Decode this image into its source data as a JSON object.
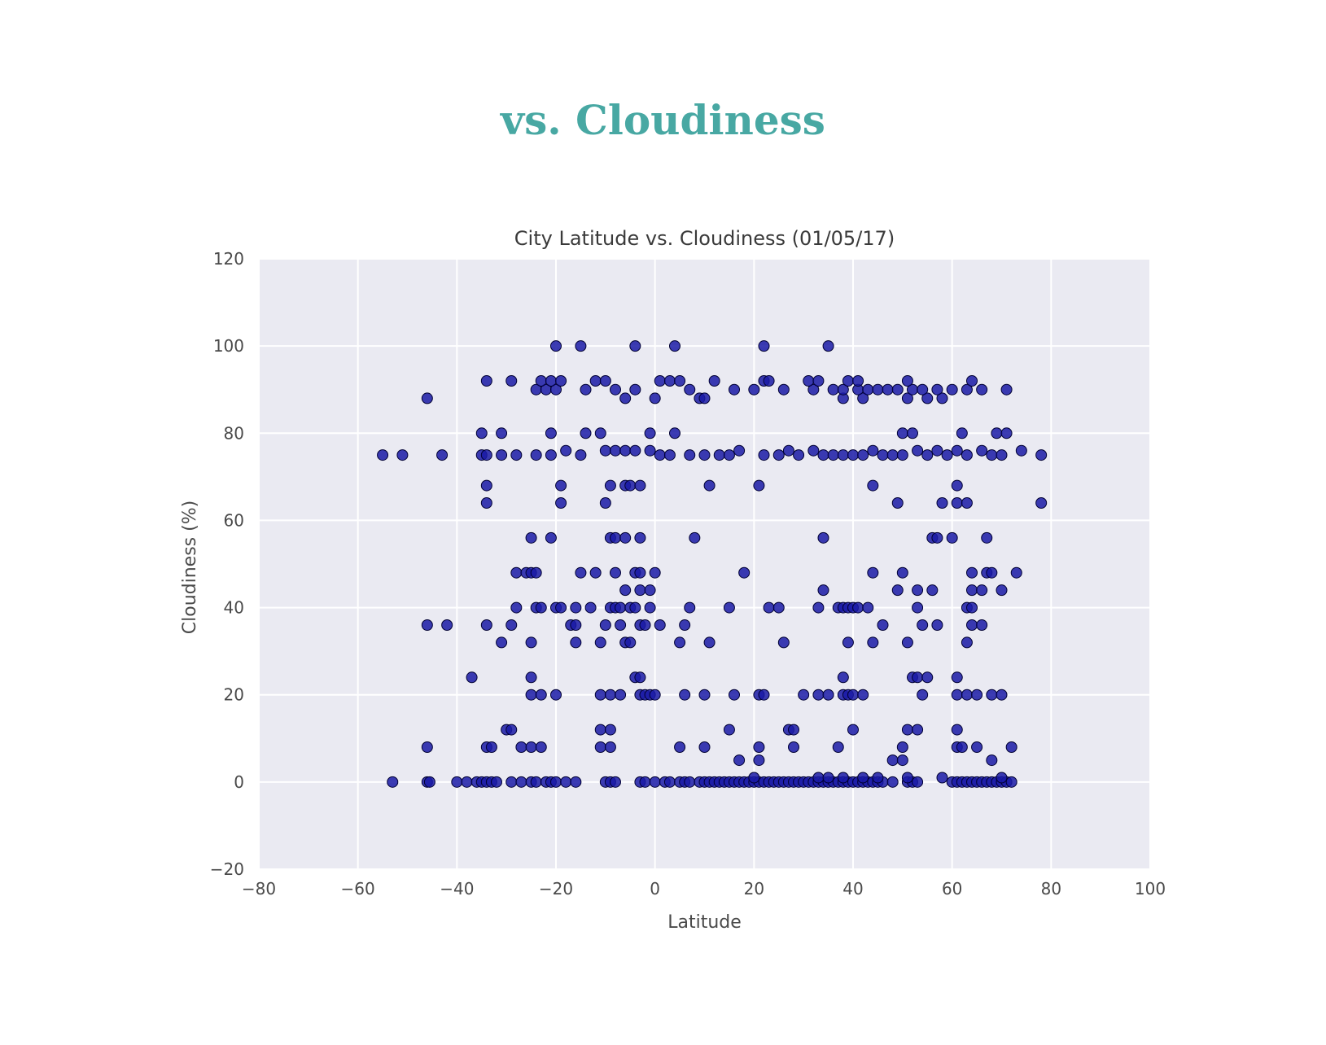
{
  "page": {
    "heading": "vs. Cloudiness"
  },
  "colors": {
    "heading": "#48a8a3",
    "plot_background": "#eaeaf2",
    "grid": "#ffffff",
    "point_fill": "#1a1aa6",
    "point_edge": "#000033"
  },
  "chart_data": {
    "type": "scatter",
    "title": "City Latitude vs. Cloudiness (01/05/17)",
    "xlabel": "Latitude",
    "ylabel": "Cloudiness (%)",
    "xlim": [
      -80,
      100
    ],
    "ylim": [
      -20,
      120
    ],
    "xticks": [
      "−80",
      "−60",
      "−40",
      "−20",
      "0",
      "20",
      "40",
      "60",
      "80",
      "100"
    ],
    "yticks": [
      "−20",
      "0",
      "20",
      "40",
      "60",
      "80",
      "100",
      "120"
    ],
    "grid": true,
    "points": [
      [
        -53,
        0
      ],
      [
        -46,
        0
      ],
      [
        -45.5,
        0
      ],
      [
        -40,
        0
      ],
      [
        -38,
        0
      ],
      [
        -36,
        0
      ],
      [
        -35,
        0
      ],
      [
        -34,
        0
      ],
      [
        -33,
        0
      ],
      [
        -32,
        0
      ],
      [
        -29,
        0
      ],
      [
        -27,
        0
      ],
      [
        -25,
        0
      ],
      [
        -24,
        0
      ],
      [
        -22,
        0
      ],
      [
        -21,
        0
      ],
      [
        -20,
        0
      ],
      [
        -18,
        0
      ],
      [
        -16,
        0
      ],
      [
        -10,
        0
      ],
      [
        -9,
        0
      ],
      [
        -8,
        0
      ],
      [
        -3,
        0
      ],
      [
        -2,
        0
      ],
      [
        0,
        0
      ],
      [
        2,
        0
      ],
      [
        3,
        0
      ],
      [
        5,
        0
      ],
      [
        6,
        0
      ],
      [
        7,
        0
      ],
      [
        9,
        0
      ],
      [
        10,
        0
      ],
      [
        11,
        0
      ],
      [
        12,
        0
      ],
      [
        13,
        0
      ],
      [
        14,
        0
      ],
      [
        15,
        0
      ],
      [
        16,
        0
      ],
      [
        17,
        0
      ],
      [
        18,
        0
      ],
      [
        19,
        0
      ],
      [
        20,
        0
      ],
      [
        21,
        0
      ],
      [
        22,
        0
      ],
      [
        23,
        0
      ],
      [
        24,
        0
      ],
      [
        25,
        0
      ],
      [
        26,
        0
      ],
      [
        27,
        0
      ],
      [
        28,
        0
      ],
      [
        29,
        0
      ],
      [
        30,
        0
      ],
      [
        31,
        0
      ],
      [
        32,
        0
      ],
      [
        33,
        0
      ],
      [
        34,
        0
      ],
      [
        35,
        0
      ],
      [
        36,
        0
      ],
      [
        37,
        0
      ],
      [
        38,
        0
      ],
      [
        39,
        0
      ],
      [
        40,
        0
      ],
      [
        41,
        0
      ],
      [
        42,
        0
      ],
      [
        43,
        0
      ],
      [
        44,
        0
      ],
      [
        45,
        0
      ],
      [
        46,
        0
      ],
      [
        48,
        0
      ],
      [
        51,
        0
      ],
      [
        52,
        0
      ],
      [
        53,
        0
      ],
      [
        58,
        1
      ],
      [
        60,
        0
      ],
      [
        61,
        0
      ],
      [
        62,
        0
      ],
      [
        63,
        0
      ],
      [
        64,
        0
      ],
      [
        65,
        0
      ],
      [
        66,
        0
      ],
      [
        67,
        0
      ],
      [
        68,
        0
      ],
      [
        69,
        0
      ],
      [
        70,
        0
      ],
      [
        71,
        0
      ],
      [
        72,
        0
      ],
      [
        20,
        1
      ],
      [
        33,
        1
      ],
      [
        35,
        1
      ],
      [
        38,
        1
      ],
      [
        42,
        1
      ],
      [
        45,
        1
      ],
      [
        51,
        1
      ],
      [
        70,
        1
      ],
      [
        -46,
        8
      ],
      [
        -34,
        8
      ],
      [
        -33,
        8
      ],
      [
        -27,
        8
      ],
      [
        -25,
        8
      ],
      [
        -23,
        8
      ],
      [
        -11,
        8
      ],
      [
        -9,
        8
      ],
      [
        5,
        8
      ],
      [
        10,
        8
      ],
      [
        21,
        8
      ],
      [
        28,
        8
      ],
      [
        37,
        8
      ],
      [
        50,
        8
      ],
      [
        61,
        8
      ],
      [
        62,
        8
      ],
      [
        65,
        8
      ],
      [
        72,
        8
      ],
      [
        17,
        5
      ],
      [
        21,
        5
      ],
      [
        48,
        5
      ],
      [
        50,
        5
      ],
      [
        68,
        5
      ],
      [
        -30,
        12
      ],
      [
        -29,
        12
      ],
      [
        -11,
        12
      ],
      [
        -9,
        12
      ],
      [
        15,
        12
      ],
      [
        27,
        12
      ],
      [
        28,
        12
      ],
      [
        40,
        12
      ],
      [
        51,
        12
      ],
      [
        53,
        12
      ],
      [
        61,
        12
      ],
      [
        -37,
        24
      ],
      [
        -25,
        24
      ],
      [
        -4,
        24
      ],
      [
        -3,
        24
      ],
      [
        38,
        24
      ],
      [
        52,
        24
      ],
      [
        53,
        24
      ],
      [
        55,
        24
      ],
      [
        61,
        24
      ],
      [
        -25,
        20
      ],
      [
        -23,
        20
      ],
      [
        -20,
        20
      ],
      [
        -11,
        20
      ],
      [
        -9,
        20
      ],
      [
        -7,
        20
      ],
      [
        -3,
        20
      ],
      [
        -2,
        20
      ],
      [
        -1,
        20
      ],
      [
        0,
        20
      ],
      [
        6,
        20
      ],
      [
        10,
        20
      ],
      [
        16,
        20
      ],
      [
        21,
        20
      ],
      [
        22,
        20
      ],
      [
        30,
        20
      ],
      [
        33,
        20
      ],
      [
        35,
        20
      ],
      [
        38,
        20
      ],
      [
        39,
        20
      ],
      [
        40,
        20
      ],
      [
        42,
        20
      ],
      [
        54,
        20
      ],
      [
        61,
        20
      ],
      [
        63,
        20
      ],
      [
        65,
        20
      ],
      [
        68,
        20
      ],
      [
        70,
        20
      ],
      [
        -46,
        36
      ],
      [
        -42,
        36
      ],
      [
        -34,
        36
      ],
      [
        -29,
        36
      ],
      [
        -17,
        36
      ],
      [
        -16,
        36
      ],
      [
        -10,
        36
      ],
      [
        -7,
        36
      ],
      [
        -3,
        36
      ],
      [
        -2,
        36
      ],
      [
        1,
        36
      ],
      [
        6,
        36
      ],
      [
        46,
        36
      ],
      [
        54,
        36
      ],
      [
        57,
        36
      ],
      [
        64,
        36
      ],
      [
        66,
        36
      ],
      [
        -31,
        32
      ],
      [
        -25,
        32
      ],
      [
        -16,
        32
      ],
      [
        -11,
        32
      ],
      [
        -6,
        32
      ],
      [
        -5,
        32
      ],
      [
        5,
        32
      ],
      [
        11,
        32
      ],
      [
        26,
        32
      ],
      [
        39,
        32
      ],
      [
        44,
        32
      ],
      [
        51,
        32
      ],
      [
        63,
        32
      ],
      [
        -28,
        40
      ],
      [
        -24,
        40
      ],
      [
        -23,
        40
      ],
      [
        -20,
        40
      ],
      [
        -19,
        40
      ],
      [
        -16,
        40
      ],
      [
        -13,
        40
      ],
      [
        -9,
        40
      ],
      [
        -8,
        40
      ],
      [
        -7,
        40
      ],
      [
        -5,
        40
      ],
      [
        -4,
        40
      ],
      [
        -1,
        40
      ],
      [
        7,
        40
      ],
      [
        15,
        40
      ],
      [
        23,
        40
      ],
      [
        25,
        40
      ],
      [
        33,
        40
      ],
      [
        37,
        40
      ],
      [
        38,
        40
      ],
      [
        39,
        40
      ],
      [
        40,
        40
      ],
      [
        41,
        40
      ],
      [
        43,
        40
      ],
      [
        53,
        40
      ],
      [
        63,
        40
      ],
      [
        64,
        40
      ],
      [
        -6,
        44
      ],
      [
        -3,
        44
      ],
      [
        -1,
        44
      ],
      [
        34,
        44
      ],
      [
        49,
        44
      ],
      [
        53,
        44
      ],
      [
        56,
        44
      ],
      [
        64,
        44
      ],
      [
        66,
        44
      ],
      [
        70,
        44
      ],
      [
        -28,
        48
      ],
      [
        -26,
        48
      ],
      [
        -25,
        48
      ],
      [
        -24,
        48
      ],
      [
        -15,
        48
      ],
      [
        -12,
        48
      ],
      [
        -8,
        48
      ],
      [
        -4,
        48
      ],
      [
        -3,
        48
      ],
      [
        0,
        48
      ],
      [
        18,
        48
      ],
      [
        44,
        48
      ],
      [
        50,
        48
      ],
      [
        64,
        48
      ],
      [
        67,
        48
      ],
      [
        68,
        48
      ],
      [
        73,
        48
      ],
      [
        -25,
        56
      ],
      [
        -21,
        56
      ],
      [
        -9,
        56
      ],
      [
        -8,
        56
      ],
      [
        -6,
        56
      ],
      [
        -3,
        56
      ],
      [
        8,
        56
      ],
      [
        34,
        56
      ],
      [
        56,
        56
      ],
      [
        57,
        56
      ],
      [
        60,
        56
      ],
      [
        67,
        56
      ],
      [
        -34,
        64
      ],
      [
        -19,
        64
      ],
      [
        -10,
        64
      ],
      [
        49,
        64
      ],
      [
        58,
        64
      ],
      [
        61,
        64
      ],
      [
        63,
        64
      ],
      [
        78,
        64
      ],
      [
        -34,
        68
      ],
      [
        -19,
        68
      ],
      [
        -9,
        68
      ],
      [
        -6,
        68
      ],
      [
        -5,
        68
      ],
      [
        -3,
        68
      ],
      [
        11,
        68
      ],
      [
        21,
        68
      ],
      [
        44,
        68
      ],
      [
        61,
        68
      ],
      [
        -55,
        75
      ],
      [
        -51,
        75
      ],
      [
        -43,
        75
      ],
      [
        -35,
        75
      ],
      [
        -34,
        75
      ],
      [
        -31,
        75
      ],
      [
        -28,
        75
      ],
      [
        -24,
        75
      ],
      [
        -21,
        75
      ],
      [
        -18,
        76
      ],
      [
        -15,
        75
      ],
      [
        -10,
        76
      ],
      [
        -8,
        76
      ],
      [
        -6,
        76
      ],
      [
        -4,
        76
      ],
      [
        -1,
        76
      ],
      [
        1,
        75
      ],
      [
        3,
        75
      ],
      [
        7,
        75
      ],
      [
        10,
        75
      ],
      [
        13,
        75
      ],
      [
        15,
        75
      ],
      [
        17,
        76
      ],
      [
        22,
        75
      ],
      [
        25,
        75
      ],
      [
        27,
        76
      ],
      [
        29,
        75
      ],
      [
        32,
        76
      ],
      [
        34,
        75
      ],
      [
        36,
        75
      ],
      [
        38,
        75
      ],
      [
        40,
        75
      ],
      [
        42,
        75
      ],
      [
        44,
        76
      ],
      [
        46,
        75
      ],
      [
        48,
        75
      ],
      [
        50,
        75
      ],
      [
        53,
        76
      ],
      [
        55,
        75
      ],
      [
        57,
        76
      ],
      [
        59,
        75
      ],
      [
        61,
        76
      ],
      [
        63,
        75
      ],
      [
        66,
        76
      ],
      [
        68,
        75
      ],
      [
        70,
        75
      ],
      [
        74,
        76
      ],
      [
        78,
        75
      ],
      [
        -35,
        80
      ],
      [
        -31,
        80
      ],
      [
        -21,
        80
      ],
      [
        -14,
        80
      ],
      [
        -11,
        80
      ],
      [
        -1,
        80
      ],
      [
        4,
        80
      ],
      [
        50,
        80
      ],
      [
        52,
        80
      ],
      [
        62,
        80
      ],
      [
        69,
        80
      ],
      [
        71,
        80
      ],
      [
        -46,
        88
      ],
      [
        -6,
        88
      ],
      [
        0,
        88
      ],
      [
        9,
        88
      ],
      [
        10,
        88
      ],
      [
        38,
        88
      ],
      [
        42,
        88
      ],
      [
        51,
        88
      ],
      [
        55,
        88
      ],
      [
        58,
        88
      ],
      [
        -24,
        90
      ],
      [
        -22,
        90
      ],
      [
        -20,
        90
      ],
      [
        -14,
        90
      ],
      [
        -8,
        90
      ],
      [
        -4,
        90
      ],
      [
        7,
        90
      ],
      [
        16,
        90
      ],
      [
        20,
        90
      ],
      [
        26,
        90
      ],
      [
        32,
        90
      ],
      [
        36,
        90
      ],
      [
        38,
        90
      ],
      [
        41,
        90
      ],
      [
        43,
        90
      ],
      [
        45,
        90
      ],
      [
        47,
        90
      ],
      [
        49,
        90
      ],
      [
        52,
        90
      ],
      [
        54,
        90
      ],
      [
        57,
        90
      ],
      [
        60,
        90
      ],
      [
        63,
        90
      ],
      [
        66,
        90
      ],
      [
        71,
        90
      ],
      [
        -34,
        92
      ],
      [
        -29,
        92
      ],
      [
        -23,
        92
      ],
      [
        -21,
        92
      ],
      [
        -19,
        92
      ],
      [
        -12,
        92
      ],
      [
        -10,
        92
      ],
      [
        1,
        92
      ],
      [
        3,
        92
      ],
      [
        5,
        92
      ],
      [
        12,
        92
      ],
      [
        22,
        92
      ],
      [
        23,
        92
      ],
      [
        31,
        92
      ],
      [
        33,
        92
      ],
      [
        39,
        92
      ],
      [
        41,
        92
      ],
      [
        51,
        92
      ],
      [
        64,
        92
      ],
      [
        -20,
        100
      ],
      [
        -15,
        100
      ],
      [
        -4,
        100
      ],
      [
        4,
        100
      ],
      [
        22,
        100
      ],
      [
        35,
        100
      ]
    ]
  }
}
